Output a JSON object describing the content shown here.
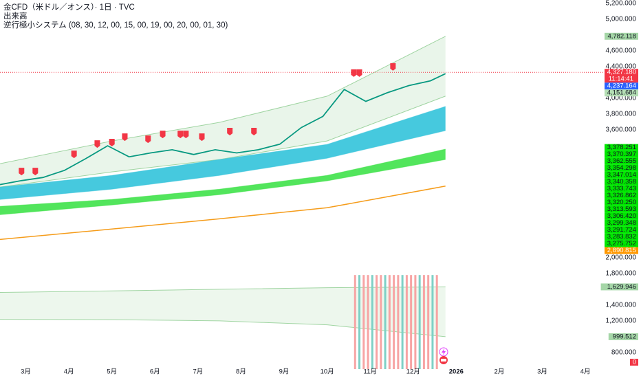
{
  "chart_data": [
    {
      "type": "line",
      "title": "金CFD（米ドル／オンス）· 1日 · TVC",
      "subtitle": "逆行極小システム (08, 30, 12, 00, 15, 00, 19, 00, 20, 00, 01, 30)",
      "xlim": [
        -0.6,
        13.43
      ],
      "ylim": [
        2030,
        5240
      ],
      "grid": false,
      "yticks": [
        {
          "value": 5200,
          "label": "5,200.000"
        },
        {
          "value": 5000,
          "label": "5,000.000"
        },
        {
          "value": 4600,
          "label": "4,600.000"
        },
        {
          "value": 4400,
          "label": "4,400.000"
        },
        {
          "value": 4000,
          "label": "4,000.000"
        },
        {
          "value": 3800,
          "label": "3,800.000"
        },
        {
          "value": 3600,
          "label": "3,600.000"
        }
      ],
      "x": [
        -0.6,
        -0.1,
        0.4,
        0.9,
        1.4,
        1.9,
        2.4,
        2.9,
        3.4,
        3.9,
        4.4,
        4.9,
        5.4,
        5.9,
        6.4,
        6.9,
        7.4,
        7.9,
        8.4,
        8.9,
        9.4,
        9.75
      ],
      "series": [
        {
          "color": "#089981",
          "values": [
            2910,
            2960,
            3000,
            3090,
            3240,
            3400,
            3260,
            3310,
            3350,
            3290,
            3350,
            3310,
            3350,
            3420,
            3630,
            3770,
            4110,
            3960,
            4070,
            4160,
            4220,
            4310
          ]
        }
      ],
      "bands": [
        {
          "color": "#4caf50",
          "x": [
            -0.6,
            2,
            4.5,
            7,
            9.75
          ],
          "upper": [
            3174,
            3461,
            3696,
            4026,
            4782
          ],
          "lower": [
            2878,
            3070,
            3226,
            3461,
            4026
          ]
        },
        {
          "color": "#3cc6dc",
          "x": [
            -0.6,
            2,
            4.5,
            7,
            9.75
          ],
          "upper": [
            2878,
            3026,
            3226,
            3417,
            3896
          ],
          "lower": [
            2722,
            2852,
            3026,
            3243,
            3591
          ]
        },
        {
          "color": "#3fe24a",
          "x": [
            -0.6,
            2,
            4.5,
            7,
            9.75
          ],
          "upper": [
            2635,
            2722,
            2852,
            3026,
            3357
          ],
          "lower": [
            2530,
            2652,
            2783,
            2957,
            3226
          ]
        }
      ],
      "lines": [
        {
          "color": "#f59c1a",
          "x": [
            -0.6,
            2,
            4.5,
            7,
            9.75
          ],
          "values": [
            2217,
            2348,
            2478,
            2617,
            2891
          ]
        }
      ],
      "signals": {
        "color": "#f23645",
        "x": [
          -0.1,
          0.22,
          1.12,
          1.66,
          2.0,
          2.3,
          2.84,
          3.18,
          3.59,
          3.72,
          4.09,
          4.74,
          5.3,
          7.62,
          7.75,
          8.53
        ],
        "values": [
          3070,
          3070,
          3287,
          3417,
          3435,
          3504,
          3478,
          3539,
          3539,
          3539,
          3504,
          3574,
          3574,
          4313,
          4313,
          4391
        ]
      },
      "current_price": {
        "value": 4327.18,
        "label": "4,327.180",
        "timer": "11:14:41",
        "color": "#f23645"
      },
      "price_labels": [
        {
          "value": 4782.118,
          "label": "4,782.118",
          "color": "#a5d6a7"
        },
        {
          "value": 4237.164,
          "label": "4,237.164",
          "color": "#2962ff"
        },
        {
          "value": 4151.684,
          "label": "4,151.684",
          "color": "#b5dfb5"
        },
        {
          "value": 3378.251,
          "label": "3,378.251",
          "color": "#00e600"
        },
        {
          "value": 3370.397,
          "label": "3,370.397",
          "color": "#00e600"
        },
        {
          "value": 3362.555,
          "label": "3,362.555",
          "color": "#00e600"
        },
        {
          "value": 3354.298,
          "label": "3,354.298",
          "color": "#00e600"
        },
        {
          "value": 3347.014,
          "label": "3,347.014",
          "color": "#00e600"
        },
        {
          "value": 3340.358,
          "label": "3,340.358",
          "color": "#00e600"
        },
        {
          "value": 3333.743,
          "label": "3,333.743",
          "color": "#00e600"
        },
        {
          "value": 3326.862,
          "label": "3,326.862",
          "color": "#00e600"
        },
        {
          "value": 3320.25,
          "label": "3,320.250",
          "color": "#00e600"
        },
        {
          "value": 3313.593,
          "label": "3,313.593",
          "color": "#00e600"
        },
        {
          "value": 3306.42,
          "label": "3,306.420",
          "color": "#00e600"
        },
        {
          "value": 3299.348,
          "label": "3,299.348",
          "color": "#00e600"
        },
        {
          "value": 3291.724,
          "label": "3,291.724",
          "color": "#00e600"
        },
        {
          "value": 3283.832,
          "label": "3,283.832",
          "color": "#00e600"
        },
        {
          "value": 3275.752,
          "label": "3,275.752",
          "color": "#00e600"
        },
        {
          "value": 2890.815,
          "label": "2,890.815",
          "color": "#ff9800"
        }
      ]
    },
    {
      "type": "bar",
      "title": "出来高",
      "ylim": [
        590,
        2025
      ],
      "yticks": [
        {
          "value": 2000,
          "label": "2,000.000"
        },
        {
          "value": 1800,
          "label": "1,800.000"
        },
        {
          "value": 1400,
          "label": "1,400.000"
        },
        {
          "value": 1200,
          "label": "1,200.000"
        },
        {
          "value": 800,
          "label": "800.000"
        }
      ],
      "xticks": [
        {
          "value": 0,
          "label": "3月"
        },
        {
          "value": 1,
          "label": "4月"
        },
        {
          "value": 2,
          "label": "5月"
        },
        {
          "value": 3,
          "label": "6月"
        },
        {
          "value": 4,
          "label": "7月"
        },
        {
          "value": 5,
          "label": "8月"
        },
        {
          "value": 6,
          "label": "9月"
        },
        {
          "value": 7,
          "label": "10月"
        },
        {
          "value": 8,
          "label": "11月"
        },
        {
          "value": 9,
          "label": "12月"
        },
        {
          "value": 10,
          "label": "2026"
        },
        {
          "value": 11,
          "label": "2月"
        },
        {
          "value": 12,
          "label": "3月"
        },
        {
          "value": 13,
          "label": "4月"
        }
      ],
      "x": [
        7.65,
        7.75,
        7.85,
        7.95,
        8.05,
        8.15,
        8.25,
        8.35,
        8.45,
        8.55,
        8.65,
        8.75,
        8.85,
        8.95,
        9.05,
        9.15,
        9.25,
        9.35,
        9.45,
        9.55
      ],
      "values": [
        1780,
        1780,
        1780,
        1780,
        1780,
        1780,
        1780,
        1780,
        1780,
        1780,
        1780,
        1780,
        1780,
        1780,
        1780,
        1780,
        1780,
        1780,
        1780,
        1780
      ],
      "colors": [
        "#f7a4a4",
        "#7fd0c6",
        "#f7a4a4",
        "#f7a4a4",
        "#7fd0c6",
        "#f7a4a4",
        "#f7a4a4",
        "#7fd0c6",
        "#f7a4a4",
        "#f7a4a4",
        "#f7a4a4",
        "#7fd0c6",
        "#f7a4a4",
        "#f7a4a4",
        "#f7a4a4",
        "#7fd0c6",
        "#f7a4a4",
        "#f7a4a4",
        "#7fd0c6",
        "#f7a4a4"
      ],
      "bands": [
        {
          "color": "#4caf50",
          "x": [
            -0.6,
            2,
            4.5,
            7,
            9.75
          ],
          "upper": [
            1560,
            1580,
            1600,
            1620,
            1630
          ],
          "lower": [
            1220,
            1215,
            1200,
            1150,
            1000
          ]
        }
      ],
      "price_labels": [
        {
          "value": 1629.946,
          "label": "1,629.946",
          "color": "#a5d6a7"
        },
        {
          "value": 999.512,
          "label": "999.512",
          "color": "#a5d6a7"
        },
        {
          "value": 0,
          "label": "0",
          "color": "#f23645"
        }
      ]
    }
  ]
}
